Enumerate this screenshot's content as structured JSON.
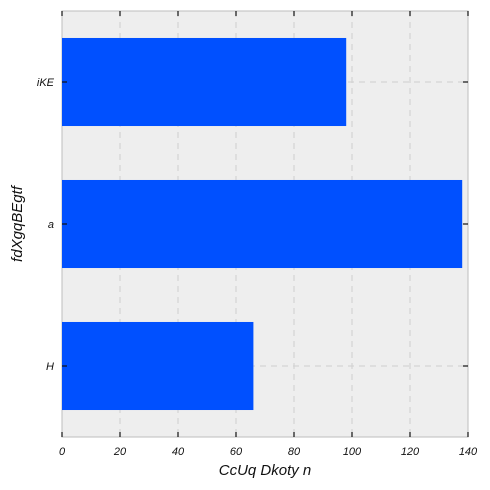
{
  "chart_data": {
    "type": "bar",
    "orientation": "horizontal",
    "title": "",
    "xlabel": "CcUq Dkoty n",
    "ylabel": "fdXgqBEgtf",
    "categories": [
      "H",
      "a",
      "iKE"
    ],
    "values": [
      66,
      138,
      98
    ],
    "xlim": [
      0,
      140
    ],
    "xticks": [
      0,
      20,
      40,
      60,
      80,
      100,
      120,
      140
    ],
    "grid": true,
    "bar_color": "#0050ff",
    "background_color": "#eeeeee"
  }
}
